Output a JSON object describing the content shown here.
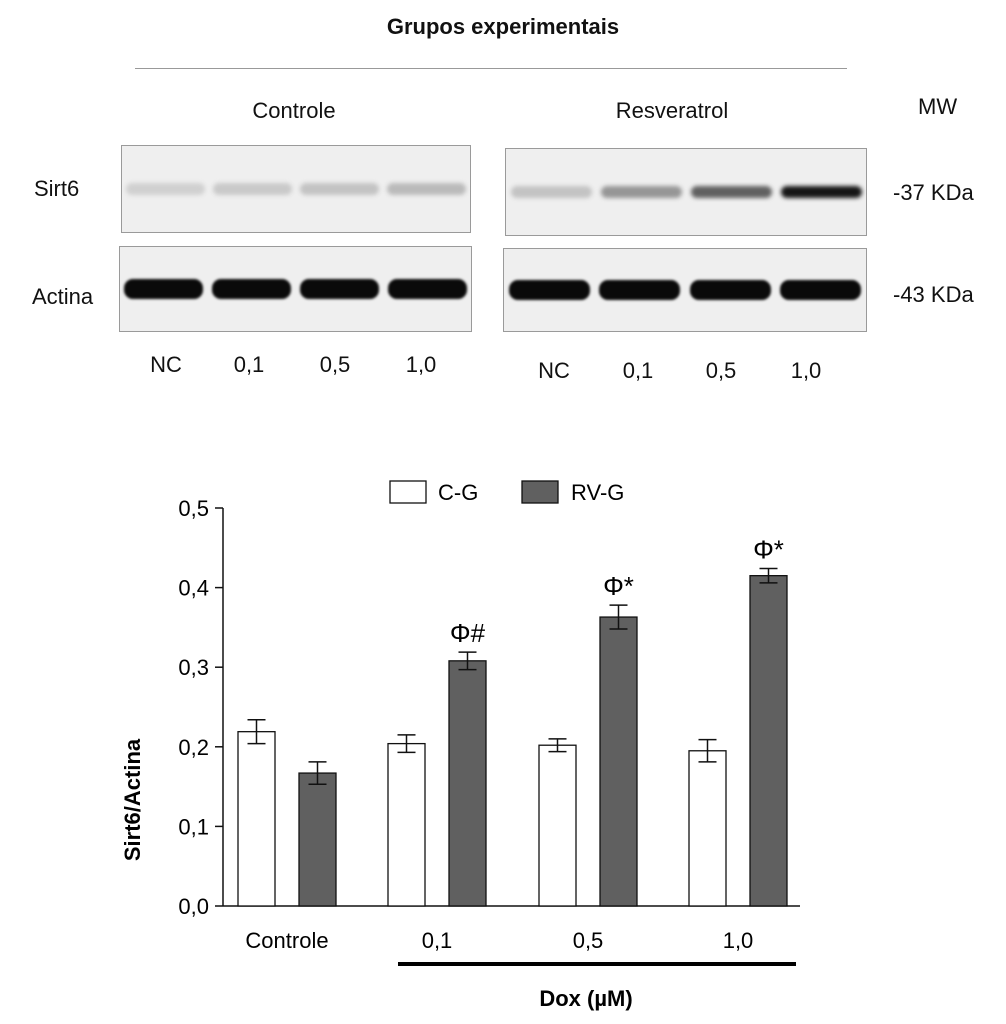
{
  "figure_title": "Grupos experimentais",
  "blot": {
    "groups": [
      "Controle",
      "Resveratrol"
    ],
    "mw_label": "MW",
    "rows": [
      {
        "label": "Sirt6",
        "mw": "-37 KDa"
      },
      {
        "label": "Actina",
        "mw": "-43 KDa"
      }
    ],
    "lanes": [
      "NC",
      "0,1",
      "0,5",
      "1,0"
    ],
    "band_intensity": {
      "Controle": {
        "Sirt6": [
          0.12,
          0.15,
          0.18,
          0.22
        ],
        "Actina": [
          1,
          1,
          1,
          1
        ]
      },
      "Resveratrol": {
        "Sirt6": [
          0.18,
          0.38,
          0.62,
          0.95
        ],
        "Actina": [
          1,
          1,
          1,
          1
        ]
      }
    }
  },
  "chart_data": {
    "type": "bar",
    "categories": [
      "Controle",
      "0,1",
      "0,5",
      "1,0"
    ],
    "series": [
      {
        "name": "C-G",
        "values": [
          0.219,
          0.204,
          0.202,
          0.195
        ],
        "errors": [
          0.015,
          0.011,
          0.008,
          0.014
        ],
        "color": "#ffffff"
      },
      {
        "name": "RV-G",
        "values": [
          0.167,
          0.308,
          0.363,
          0.415
        ],
        "errors": [
          0.014,
          0.011,
          0.015,
          0.009
        ],
        "color": "#606060"
      }
    ],
    "annotations": [
      "",
      "Φ#",
      "Φ*",
      "Φ*"
    ],
    "ylabel": "Sirt6/Actina",
    "xlabel": "Dox (µM)",
    "ylim": [
      0,
      0.5
    ],
    "yticks": [
      "0,0",
      "0,1",
      "0,2",
      "0,3",
      "0,4",
      "0,5"
    ],
    "legend_position": "top",
    "grid": false
  }
}
